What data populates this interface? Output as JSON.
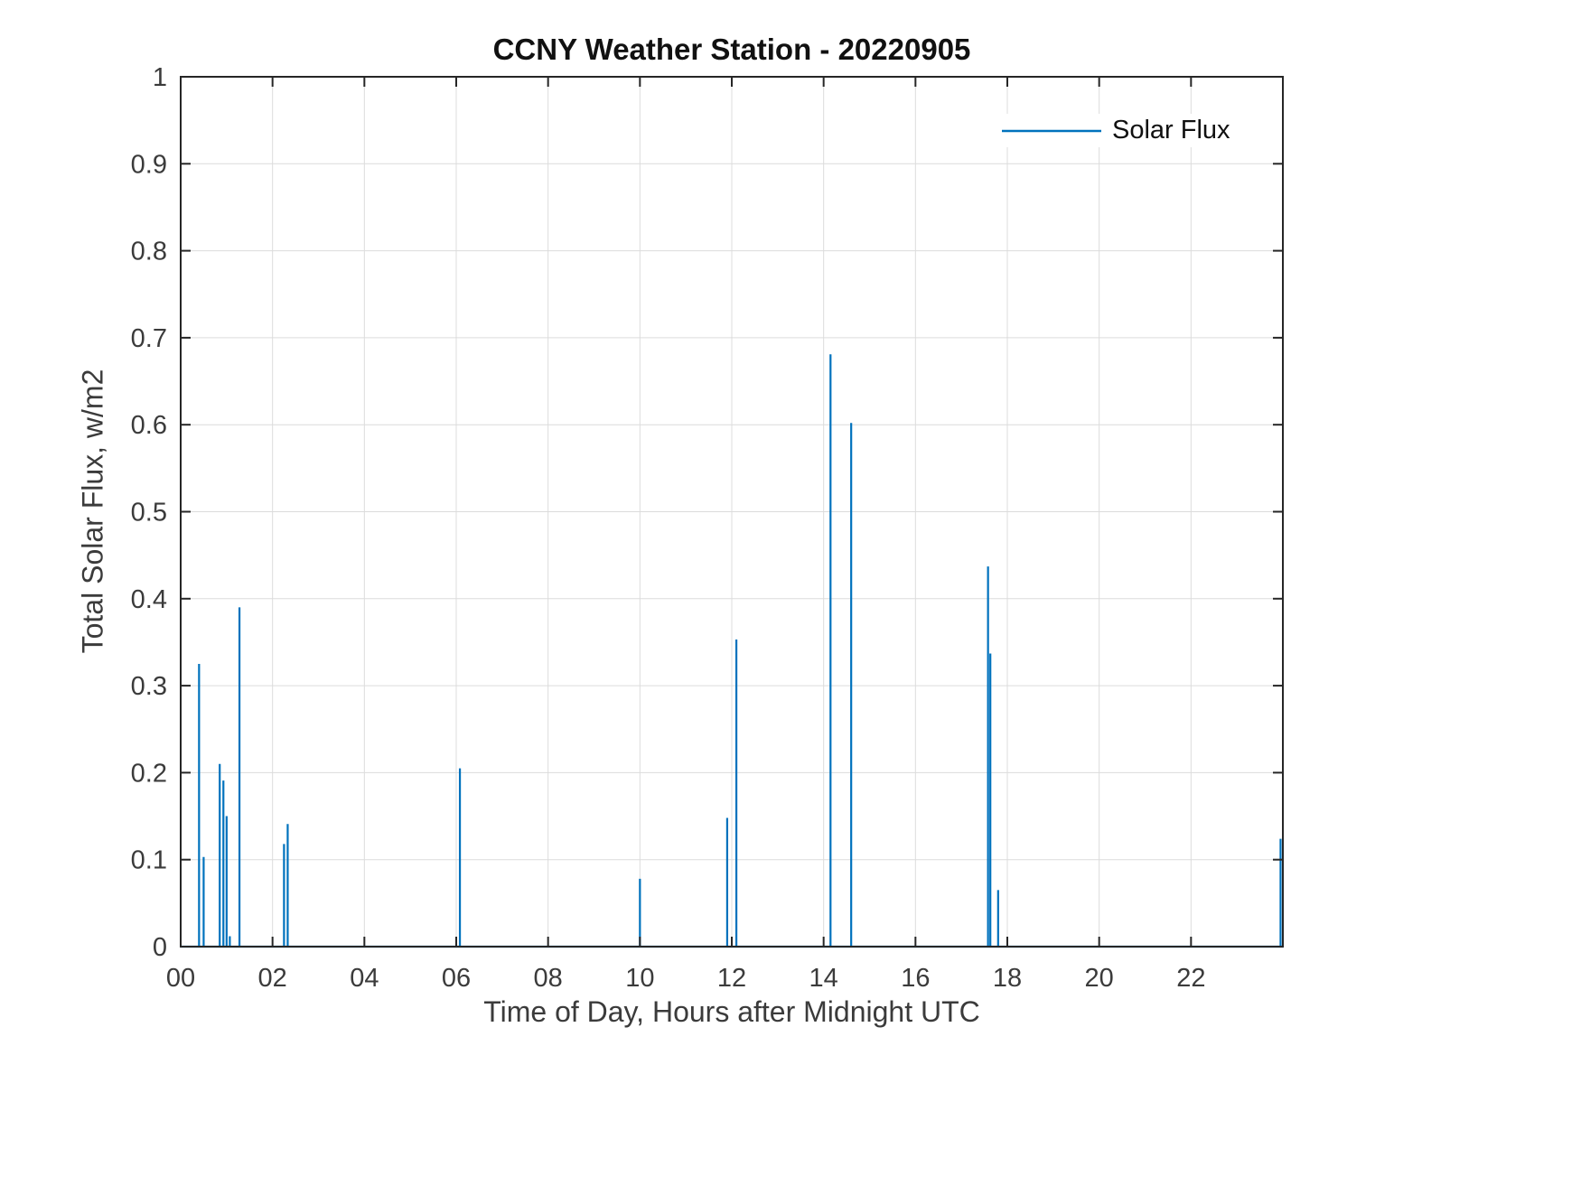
{
  "chart_data": {
    "type": "line",
    "title": "CCNY Weather Station - 20220905",
    "xlabel": "Time of Day, Hours after Midnight UTC",
    "ylabel": "Total Solar Flux, w/m2",
    "xlim": [
      0,
      24
    ],
    "ylim": [
      0,
      1
    ],
    "grid": true,
    "xtick_values": [
      0,
      2,
      4,
      6,
      8,
      10,
      12,
      14,
      16,
      18,
      20,
      22
    ],
    "xtick_labels": [
      "00",
      "02",
      "04",
      "06",
      "08",
      "10",
      "12",
      "14",
      "16",
      "18",
      "20",
      "22"
    ],
    "ytick_values": [
      0,
      0.1,
      0.2,
      0.3,
      0.4,
      0.5,
      0.6,
      0.7,
      0.8,
      0.9,
      1
    ],
    "ytick_labels": [
      "0",
      "0.1",
      "0.2",
      "0.3",
      "0.4",
      "0.5",
      "0.6",
      "0.7",
      "0.8",
      "0.9",
      "1"
    ],
    "legend": {
      "position": "top-right",
      "entries": [
        "Solar Flux"
      ]
    },
    "colors": {
      "line": "#0072BD",
      "axis": "#262626",
      "grid": "#dcdcdc",
      "tick_label": "#3b3b3b"
    },
    "series": [
      {
        "name": "Solar Flux",
        "baseline": 0,
        "spikes": [
          {
            "x": 0.4,
            "y": 0.325
          },
          {
            "x": 0.5,
            "y": 0.103
          },
          {
            "x": 0.85,
            "y": 0.21
          },
          {
            "x": 0.93,
            "y": 0.191
          },
          {
            "x": 1.0,
            "y": 0.15
          },
          {
            "x": 1.07,
            "y": 0.012
          },
          {
            "x": 1.28,
            "y": 0.39
          },
          {
            "x": 2.25,
            "y": 0.118
          },
          {
            "x": 2.33,
            "y": 0.141
          },
          {
            "x": 6.08,
            "y": 0.205
          },
          {
            "x": 10.0,
            "y": 0.078
          },
          {
            "x": 11.9,
            "y": 0.148
          },
          {
            "x": 12.1,
            "y": 0.353
          },
          {
            "x": 14.15,
            "y": 0.681
          },
          {
            "x": 14.6,
            "y": 0.602
          },
          {
            "x": 17.58,
            "y": 0.437
          },
          {
            "x": 17.63,
            "y": 0.337
          },
          {
            "x": 17.8,
            "y": 0.065
          },
          {
            "x": 23.95,
            "y": 0.124
          }
        ]
      }
    ]
  }
}
